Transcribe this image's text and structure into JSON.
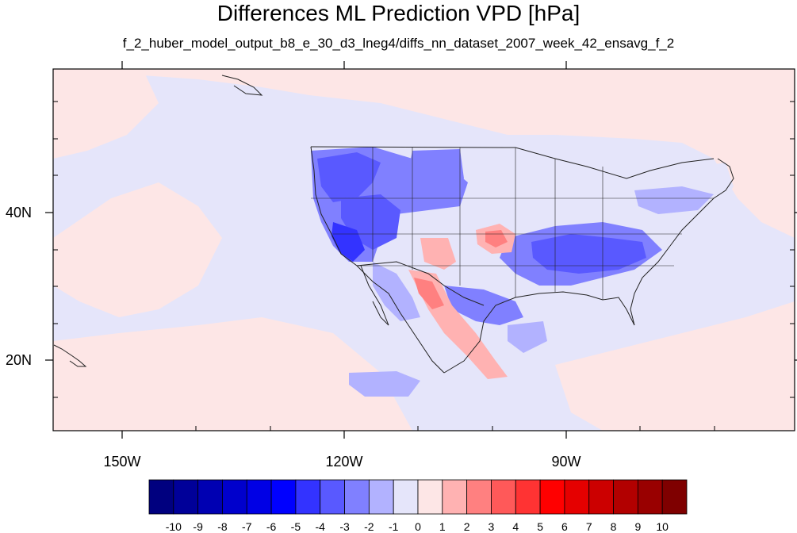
{
  "title": "Differences ML Prediction VPD [hPa]",
  "subtitle": "f_2_huber_model_output_b8_e_30_d3_lneg4/diffs_nn_dataset_2007_week_42_ensavg_f_2",
  "map": {
    "lon_labels": [
      "150W",
      "120W",
      "90W"
    ],
    "lat_labels": [
      "40N",
      "20N"
    ]
  },
  "colorbar": {
    "levels": [
      "-10",
      "-9",
      "-8",
      "-7",
      "-6",
      "-5",
      "-4",
      "-3",
      "-2",
      "-1",
      "0",
      "1",
      "2",
      "3",
      "4",
      "5",
      "6",
      "7",
      "8",
      "9",
      "10"
    ],
    "colors": [
      "#00007f",
      "#000099",
      "#0000b2",
      "#0000cc",
      "#0000e5",
      "#0000ff",
      "#3333ff",
      "#5959ff",
      "#8080ff",
      "#b2b2ff",
      "#e5e5fa",
      "#fde6e6",
      "#ffb2b2",
      "#ff8080",
      "#ff5959",
      "#ff3333",
      "#ff0000",
      "#e50000",
      "#cc0000",
      "#b20000",
      "#990000",
      "#7f0000"
    ]
  }
}
